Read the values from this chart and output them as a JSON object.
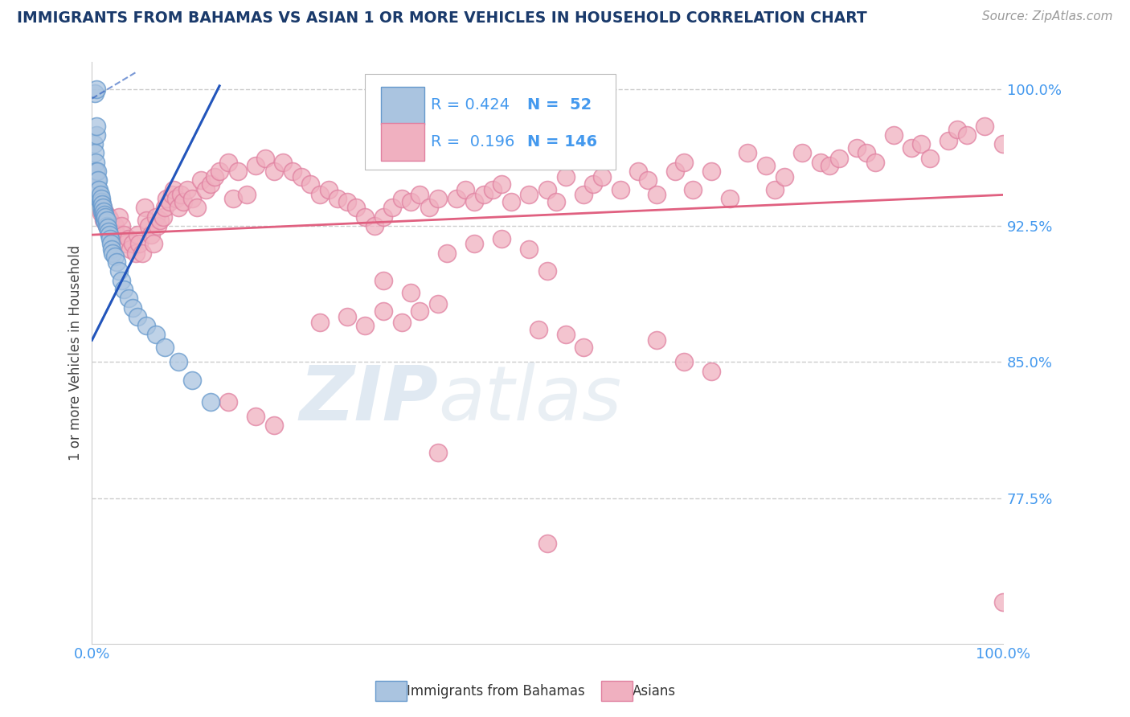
{
  "title": "IMMIGRANTS FROM BAHAMAS VS ASIAN 1 OR MORE VEHICLES IN HOUSEHOLD CORRELATION CHART",
  "source": "Source: ZipAtlas.com",
  "ylabel": "1 or more Vehicles in Household",
  "x_lim": [
    0.0,
    1.0
  ],
  "y_lim": [
    0.695,
    1.015
  ],
  "y_ticks": [
    0.775,
    0.85,
    0.925,
    1.0
  ],
  "y_tick_labels": [
    "77.5%",
    "85.0%",
    "92.5%",
    "100.0%"
  ],
  "blue_color": "#aac4e0",
  "blue_edge_color": "#6699cc",
  "blue_line_color": "#2255bb",
  "pink_color": "#f0b0c0",
  "pink_edge_color": "#e080a0",
  "pink_line_color": "#e06080",
  "title_color": "#1a3a6b",
  "source_color": "#999999",
  "axis_label_color": "#4499ee",
  "tick_color": "#4499ee",
  "grid_color": "#cccccc",
  "background_color": "#ffffff",
  "legend_R_blue": "R = 0.424",
  "legend_N_blue": "N =  52",
  "legend_R_pink": "R =  0.196",
  "legend_N_pink": "N = 146",
  "watermark_zip": "ZIP",
  "watermark_atlas": "atlas",
  "blue_x": [
    0.002,
    0.003,
    0.004,
    0.004,
    0.005,
    0.005,
    0.006,
    0.006,
    0.007,
    0.007,
    0.008,
    0.008,
    0.009,
    0.009,
    0.01,
    0.01,
    0.01,
    0.011,
    0.011,
    0.012,
    0.012,
    0.013,
    0.013,
    0.014,
    0.014,
    0.015,
    0.015,
    0.016,
    0.016,
    0.017,
    0.018,
    0.019,
    0.02,
    0.021,
    0.022,
    0.023,
    0.025,
    0.027,
    0.03,
    0.032,
    0.035,
    0.04,
    0.045,
    0.05,
    0.06,
    0.07,
    0.08,
    0.095,
    0.11,
    0.13,
    0.003,
    0.005
  ],
  "blue_y": [
    0.97,
    0.965,
    0.96,
    0.955,
    0.975,
    0.98,
    0.95,
    0.955,
    0.945,
    0.95,
    0.94,
    0.945,
    0.938,
    0.942,
    0.935,
    0.938,
    0.94,
    0.933,
    0.937,
    0.932,
    0.935,
    0.93,
    0.933,
    0.928,
    0.931,
    0.927,
    0.93,
    0.925,
    0.928,
    0.924,
    0.922,
    0.92,
    0.918,
    0.915,
    0.912,
    0.91,
    0.908,
    0.905,
    0.9,
    0.895,
    0.89,
    0.885,
    0.88,
    0.875,
    0.87,
    0.865,
    0.858,
    0.85,
    0.84,
    0.828,
    0.998,
    1.0
  ],
  "pink_x": [
    0.005,
    0.008,
    0.01,
    0.01,
    0.012,
    0.013,
    0.015,
    0.016,
    0.018,
    0.02,
    0.022,
    0.025,
    0.027,
    0.03,
    0.032,
    0.035,
    0.038,
    0.04,
    0.042,
    0.045,
    0.048,
    0.05,
    0.052,
    0.055,
    0.058,
    0.06,
    0.062,
    0.065,
    0.068,
    0.07,
    0.072,
    0.075,
    0.078,
    0.08,
    0.082,
    0.085,
    0.088,
    0.09,
    0.092,
    0.095,
    0.098,
    0.1,
    0.105,
    0.11,
    0.115,
    0.12,
    0.125,
    0.13,
    0.135,
    0.14,
    0.15,
    0.155,
    0.16,
    0.17,
    0.18,
    0.19,
    0.2,
    0.21,
    0.22,
    0.23,
    0.24,
    0.25,
    0.26,
    0.27,
    0.28,
    0.29,
    0.3,
    0.31,
    0.32,
    0.33,
    0.34,
    0.35,
    0.36,
    0.37,
    0.38,
    0.4,
    0.41,
    0.42,
    0.43,
    0.44,
    0.45,
    0.46,
    0.48,
    0.5,
    0.51,
    0.52,
    0.54,
    0.55,
    0.56,
    0.58,
    0.6,
    0.61,
    0.62,
    0.64,
    0.65,
    0.66,
    0.68,
    0.7,
    0.72,
    0.74,
    0.75,
    0.76,
    0.78,
    0.8,
    0.81,
    0.82,
    0.84,
    0.85,
    0.86,
    0.88,
    0.9,
    0.91,
    0.92,
    0.94,
    0.95,
    0.96,
    0.98,
    1.0,
    0.39,
    0.42,
    0.45,
    0.48,
    0.5,
    0.32,
    0.35,
    0.38,
    0.25,
    0.28,
    0.3,
    0.32,
    0.34,
    0.36,
    0.49,
    0.52,
    0.54,
    0.62,
    0.65,
    0.68,
    0.15,
    0.18,
    0.2,
    0.38,
    1.0,
    0.5
  ],
  "pink_y": [
    0.945,
    0.94,
    0.938,
    0.932,
    0.935,
    0.928,
    0.932,
    0.925,
    0.93,
    0.928,
    0.922,
    0.925,
    0.92,
    0.93,
    0.925,
    0.92,
    0.915,
    0.918,
    0.912,
    0.915,
    0.91,
    0.92,
    0.915,
    0.91,
    0.935,
    0.928,
    0.925,
    0.92,
    0.915,
    0.93,
    0.925,
    0.928,
    0.93,
    0.935,
    0.94,
    0.938,
    0.942,
    0.945,
    0.94,
    0.935,
    0.942,
    0.938,
    0.945,
    0.94,
    0.935,
    0.95,
    0.945,
    0.948,
    0.952,
    0.955,
    0.96,
    0.94,
    0.955,
    0.942,
    0.958,
    0.962,
    0.955,
    0.96,
    0.955,
    0.952,
    0.948,
    0.942,
    0.945,
    0.94,
    0.938,
    0.935,
    0.93,
    0.925,
    0.93,
    0.935,
    0.94,
    0.938,
    0.942,
    0.935,
    0.94,
    0.94,
    0.945,
    0.938,
    0.942,
    0.945,
    0.948,
    0.938,
    0.942,
    0.945,
    0.938,
    0.952,
    0.942,
    0.948,
    0.952,
    0.945,
    0.955,
    0.95,
    0.942,
    0.955,
    0.96,
    0.945,
    0.955,
    0.94,
    0.965,
    0.958,
    0.945,
    0.952,
    0.965,
    0.96,
    0.958,
    0.962,
    0.968,
    0.965,
    0.96,
    0.975,
    0.968,
    0.97,
    0.962,
    0.972,
    0.978,
    0.975,
    0.98,
    0.97,
    0.91,
    0.915,
    0.918,
    0.912,
    0.9,
    0.895,
    0.888,
    0.882,
    0.872,
    0.875,
    0.87,
    0.878,
    0.872,
    0.878,
    0.868,
    0.865,
    0.858,
    0.862,
    0.85,
    0.845,
    0.828,
    0.82,
    0.815,
    0.8,
    0.718,
    0.75
  ]
}
